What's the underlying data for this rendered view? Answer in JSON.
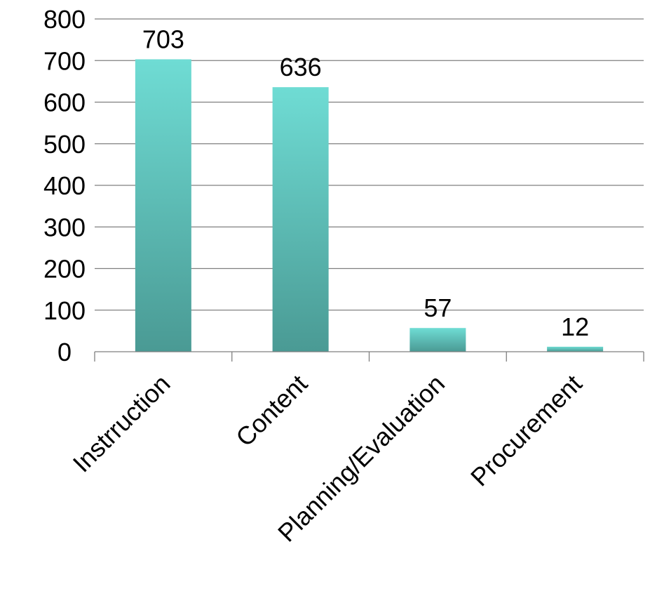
{
  "chart_data": {
    "type": "bar",
    "title": "",
    "xlabel": "",
    "ylabel": "",
    "categories": [
      "Instrruction",
      "Content",
      "Planning/Evaluation",
      "Procurement"
    ],
    "values": [
      703,
      636,
      57,
      12
    ],
    "data_labels": [
      "703",
      "636",
      "57",
      "12"
    ],
    "ylim": [
      0,
      800
    ],
    "yticks": [
      0,
      100,
      200,
      300,
      400,
      500,
      600,
      700,
      800
    ],
    "ytick_labels": [
      "0",
      "100",
      "200",
      "300",
      "400",
      "500",
      "600",
      "700",
      "800"
    ],
    "grid": true,
    "legend": "none",
    "bar_color_top": "#6fdcd4",
    "bar_color_bottom": "#4a9a94"
  }
}
